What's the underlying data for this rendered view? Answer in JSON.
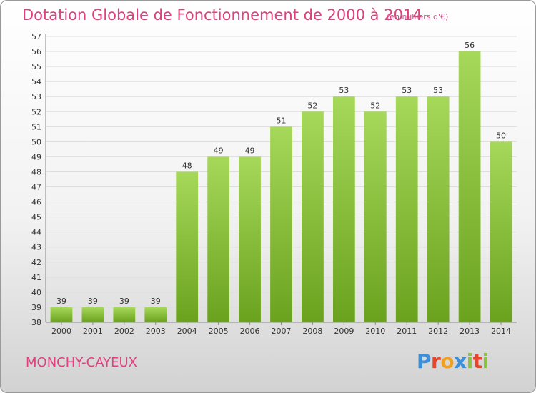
{
  "header": {
    "title": "Dotation Globale de Fonctionnement de 2000 à 2014",
    "unit": "(en milliers d'€)"
  },
  "footer": {
    "commune": "MONCHY-CAYEUX",
    "logo": "Proxiti"
  },
  "colors": {
    "title": "#e0407e",
    "bar_light": "#a6d85a",
    "bar_dark": "#6aa21e",
    "grid": "#dddddd"
  },
  "chart_data": {
    "type": "bar",
    "title": "Dotation Globale de Fonctionnement de 2000 à 2014",
    "subtitle": "(en milliers d'€)",
    "xlabel": "",
    "ylabel": "",
    "ylim": [
      38,
      57
    ],
    "yticks": [
      38,
      39,
      40,
      41,
      42,
      43,
      44,
      45,
      46,
      47,
      48,
      49,
      50,
      51,
      52,
      53,
      54,
      55,
      56,
      57
    ],
    "grid": true,
    "legend": "none",
    "categories": [
      "2000",
      "2001",
      "2002",
      "2003",
      "2004",
      "2005",
      "2006",
      "2007",
      "2008",
      "2009",
      "2010",
      "2011",
      "2012",
      "2013",
      "2014"
    ],
    "values": [
      39,
      39,
      39,
      39,
      48,
      49,
      49,
      51,
      52,
      53,
      52,
      53,
      53,
      56,
      50
    ]
  }
}
